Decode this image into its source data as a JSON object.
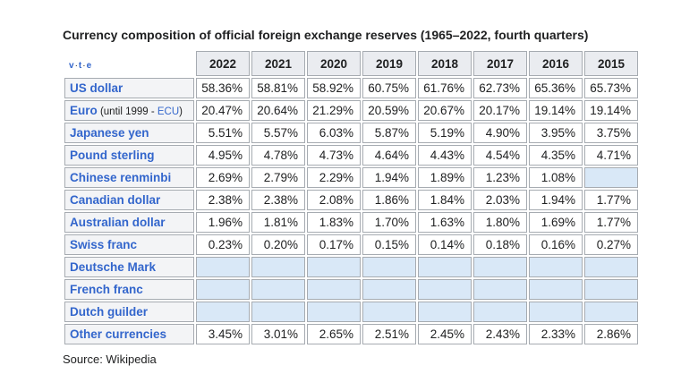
{
  "title": "Currency composition of official foreign exchange reserves (1965–2022, fourth quarters)",
  "source": "Source: Wikipedia",
  "navbar": {
    "v": "v",
    "t": "t",
    "e": "e",
    "separator": "·"
  },
  "colors": {
    "link": "#3366cc",
    "header_bg": "#eaecf0",
    "label_bg": "#f3f4f6",
    "blank_cell_bg": "#d9e8f7",
    "border": "#a6abb1",
    "text": "#202122"
  },
  "chart_data": {
    "type": "table",
    "title": "Currency composition of official foreign exchange reserves (1965–2022, fourth quarters)",
    "columns": [
      "2022",
      "2021",
      "2020",
      "2019",
      "2018",
      "2017",
      "2016",
      "2015"
    ],
    "rows": [
      {
        "label": "US dollar",
        "values": [
          "58.36%",
          "58.81%",
          "58.92%",
          "60.75%",
          "61.76%",
          "62.73%",
          "65.36%",
          "65.73%"
        ]
      },
      {
        "label": "Euro",
        "note": {
          "prefix": " (until 1999 - ",
          "link": "ECU",
          "suffix": ")"
        },
        "values": [
          "20.47%",
          "20.64%",
          "21.29%",
          "20.59%",
          "20.67%",
          "20.17%",
          "19.14%",
          "19.14%"
        ]
      },
      {
        "label": "Japanese yen",
        "values": [
          "5.51%",
          "5.57%",
          "6.03%",
          "5.87%",
          "5.19%",
          "4.90%",
          "3.95%",
          "3.75%"
        ]
      },
      {
        "label": "Pound sterling",
        "values": [
          "4.95%",
          "4.78%",
          "4.73%",
          "4.64%",
          "4.43%",
          "4.54%",
          "4.35%",
          "4.71%"
        ]
      },
      {
        "label": "Chinese renminbi",
        "values": [
          "2.69%",
          "2.79%",
          "2.29%",
          "1.94%",
          "1.89%",
          "1.23%",
          "1.08%",
          ""
        ]
      },
      {
        "label": "Canadian dollar",
        "values": [
          "2.38%",
          "2.38%",
          "2.08%",
          "1.86%",
          "1.84%",
          "2.03%",
          "1.94%",
          "1.77%"
        ]
      },
      {
        "label": "Australian dollar",
        "values": [
          "1.96%",
          "1.81%",
          "1.83%",
          "1.70%",
          "1.63%",
          "1.80%",
          "1.69%",
          "1.77%"
        ]
      },
      {
        "label": "Swiss franc",
        "values": [
          "0.23%",
          "0.20%",
          "0.17%",
          "0.15%",
          "0.14%",
          "0.18%",
          "0.16%",
          "0.27%"
        ]
      },
      {
        "label": "Deutsche Mark",
        "values": [
          "",
          "",
          "",
          "",
          "",
          "",
          "",
          ""
        ]
      },
      {
        "label": "French franc",
        "values": [
          "",
          "",
          "",
          "",
          "",
          "",
          "",
          ""
        ]
      },
      {
        "label": "Dutch guilder",
        "values": [
          "",
          "",
          "",
          "",
          "",
          "",
          "",
          ""
        ]
      },
      {
        "label": "Other currencies",
        "values": [
          "3.45%",
          "3.01%",
          "2.65%",
          "2.51%",
          "2.45%",
          "2.43%",
          "2.33%",
          "2.86%"
        ]
      }
    ]
  }
}
